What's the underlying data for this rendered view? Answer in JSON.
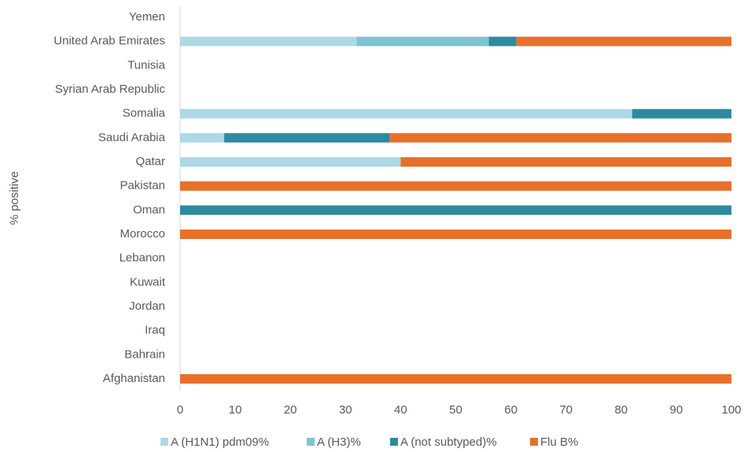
{
  "chart_data": {
    "type": "stacked-barh",
    "y_axis_label": "% positive",
    "categories": [
      "Afghanistan",
      "Bahrain",
      "Iraq",
      "Jordan",
      "Kuwait",
      "Lebanon",
      "Morocco",
      "Oman",
      "Pakistan",
      "Qatar",
      "Saudi Arabia",
      "Somalia",
      "Syrian Arab Republic",
      "Tunisia",
      "United Arab Emirates",
      "Yemen"
    ],
    "series": [
      {
        "name": "A (H1N1) pdm09%",
        "color": "#add8e6",
        "values": [
          null,
          null,
          null,
          null,
          null,
          null,
          null,
          null,
          null,
          40,
          8,
          82,
          null,
          null,
          32,
          null
        ]
      },
      {
        "name": "A (H3)%",
        "color": "#7ec4d4",
        "values": [
          null,
          null,
          null,
          null,
          null,
          null,
          null,
          null,
          null,
          null,
          null,
          null,
          null,
          null,
          24,
          null
        ]
      },
      {
        "name": "A (not subtyped)%",
        "color": "#2e8a9e",
        "values": [
          null,
          null,
          null,
          null,
          null,
          null,
          null,
          100,
          null,
          null,
          30,
          18,
          null,
          null,
          5,
          null
        ]
      },
      {
        "name": "Flu B%",
        "color": "#e8702a",
        "values": [
          100,
          null,
          null,
          null,
          null,
          null,
          100,
          null,
          100,
          60,
          62,
          null,
          null,
          null,
          39,
          null
        ]
      }
    ],
    "xlim": [
      0,
      100
    ],
    "xticks": [
      0,
      10,
      20,
      30,
      40,
      50,
      60,
      70,
      80,
      90,
      100
    ],
    "legend": "bottom",
    "grid": false
  }
}
